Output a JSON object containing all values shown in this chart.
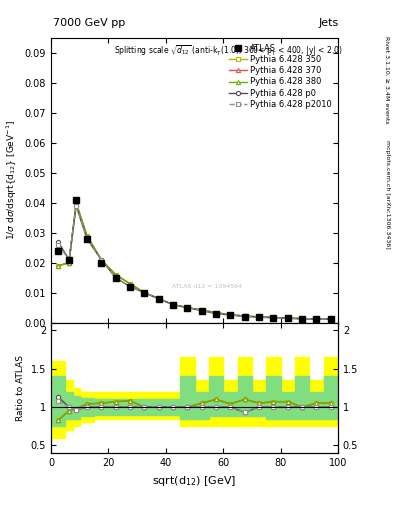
{
  "title_top": "7000 GeV pp",
  "title_right": "Jets",
  "ylabel_main": "1/σ dσ/dsqrt{d_{12}} [GeV^{-1}]",
  "ylabel_ratio": "Ratio to ATLAS",
  "right_label": "mcplots.cern.ch [arXiv:1306.3436]",
  "right_label2": "Rivet 3.1.10, ≥ 3.4M events",
  "ylim_main": [
    0,
    0.095
  ],
  "ylim_ratio": [
    0.4,
    2.1
  ],
  "xlim": [
    0,
    100
  ],
  "bin_edges": [
    0,
    5,
    7.5,
    10,
    15,
    20,
    25,
    30,
    35,
    40,
    45,
    50,
    55,
    60,
    65,
    70,
    75,
    80,
    85,
    90,
    95,
    100
  ],
  "bin_centers": [
    2.5,
    6.25,
    8.75,
    12.5,
    17.5,
    22.5,
    27.5,
    32.5,
    37.5,
    42.5,
    47.5,
    52.5,
    57.5,
    62.5,
    67.5,
    72.5,
    77.5,
    82.5,
    87.5,
    92.5,
    97.5
  ],
  "atlas_y": [
    0.024,
    0.021,
    0.041,
    0.028,
    0.02,
    0.015,
    0.012,
    0.01,
    0.008,
    0.006,
    0.005,
    0.004,
    0.003,
    0.0025,
    0.002,
    0.0018,
    0.0016,
    0.0014,
    0.0013,
    0.0012,
    0.0011
  ],
  "py350_y": [
    0.019,
    0.02,
    0.04,
    0.029,
    0.021,
    0.016,
    0.013,
    0.01,
    0.008,
    0.006,
    0.005,
    0.0042,
    0.0033,
    0.0026,
    0.0022,
    0.0019,
    0.0017,
    0.0015,
    0.0013,
    0.0012,
    0.0011
  ],
  "py370_y": [
    0.019,
    0.02,
    0.04,
    0.029,
    0.021,
    0.016,
    0.013,
    0.01,
    0.008,
    0.006,
    0.005,
    0.0042,
    0.0033,
    0.0026,
    0.0022,
    0.0019,
    0.0017,
    0.0015,
    0.0013,
    0.0012,
    0.0011
  ],
  "py380_y": [
    0.019,
    0.02,
    0.04,
    0.029,
    0.021,
    0.016,
    0.013,
    0.01,
    0.008,
    0.006,
    0.005,
    0.0042,
    0.0033,
    0.0026,
    0.0022,
    0.0019,
    0.0017,
    0.0015,
    0.0013,
    0.0012,
    0.0011
  ],
  "pyp0_y": [
    0.027,
    0.021,
    0.039,
    0.028,
    0.021,
    0.015,
    0.012,
    0.01,
    0.008,
    0.006,
    0.005,
    0.004,
    0.003,
    0.0025,
    0.0021,
    0.0018,
    0.0016,
    0.0014,
    0.0013,
    0.0012,
    0.0011
  ],
  "pyp2010_y": [
    0.026,
    0.021,
    0.039,
    0.028,
    0.021,
    0.015,
    0.012,
    0.01,
    0.008,
    0.006,
    0.005,
    0.004,
    0.003,
    0.0025,
    0.0021,
    0.0018,
    0.0016,
    0.0014,
    0.0013,
    0.0012,
    0.0011
  ],
  "color_350": "#b8b800",
  "color_370": "#e05050",
  "color_380": "#70b000",
  "color_p0": "#505050",
  "color_p2010": "#909090",
  "ratio_350": [
    0.83,
    0.95,
    0.98,
    1.04,
    1.05,
    1.07,
    1.08,
    1.0,
    1.0,
    1.0,
    1.0,
    1.05,
    1.1,
    1.04,
    1.1,
    1.05,
    1.07,
    1.07,
    1.0,
    1.05,
    1.05
  ],
  "ratio_370": [
    0.83,
    0.95,
    0.98,
    1.04,
    1.05,
    1.07,
    1.08,
    1.0,
    1.0,
    1.0,
    1.0,
    1.05,
    1.1,
    1.04,
    1.1,
    1.05,
    1.07,
    1.07,
    1.0,
    1.05,
    1.05
  ],
  "ratio_380": [
    0.83,
    0.95,
    0.98,
    1.04,
    1.05,
    1.07,
    1.08,
    1.0,
    1.0,
    1.0,
    1.0,
    1.05,
    1.1,
    1.04,
    1.1,
    1.05,
    1.07,
    1.07,
    1.0,
    1.05,
    1.05
  ],
  "ratio_p0": [
    1.13,
    1.0,
    0.96,
    1.0,
    1.0,
    1.0,
    1.0,
    1.0,
    1.0,
    1.0,
    1.0,
    1.0,
    1.0,
    1.0,
    0.93,
    1.0,
    1.0,
    1.0,
    1.0,
    1.0,
    1.0
  ],
  "ratio_p2010": [
    1.08,
    1.0,
    0.96,
    1.0,
    1.0,
    1.0,
    1.0,
    1.0,
    1.0,
    1.0,
    1.0,
    1.0,
    1.0,
    1.0,
    0.93,
    1.0,
    1.0,
    1.0,
    1.0,
    1.0,
    1.0
  ],
  "band_yellow_lo": [
    0.6,
    0.7,
    0.75,
    0.8,
    0.85,
    0.85,
    0.85,
    0.85,
    0.85,
    0.85,
    0.75,
    0.75,
    0.75,
    0.75,
    0.75,
    0.75,
    0.75,
    0.75,
    0.75,
    0.75,
    0.75
  ],
  "band_yellow_hi": [
    1.6,
    1.35,
    1.25,
    1.2,
    1.2,
    1.2,
    1.2,
    1.2,
    1.2,
    1.2,
    1.65,
    1.35,
    1.65,
    1.35,
    1.65,
    1.35,
    1.65,
    1.35,
    1.65,
    1.35,
    1.65
  ],
  "band_green_lo": [
    0.75,
    0.85,
    0.85,
    0.88,
    0.9,
    0.9,
    0.9,
    0.9,
    0.9,
    0.9,
    0.85,
    0.85,
    0.88,
    0.88,
    0.88,
    0.88,
    0.85,
    0.85,
    0.85,
    0.85,
    0.85
  ],
  "band_green_hi": [
    1.4,
    1.2,
    1.15,
    1.12,
    1.1,
    1.1,
    1.1,
    1.1,
    1.1,
    1.1,
    1.4,
    1.2,
    1.4,
    1.2,
    1.4,
    1.2,
    1.4,
    1.2,
    1.4,
    1.2,
    1.4
  ],
  "watermark": "ATLAS d12 = 1094564"
}
